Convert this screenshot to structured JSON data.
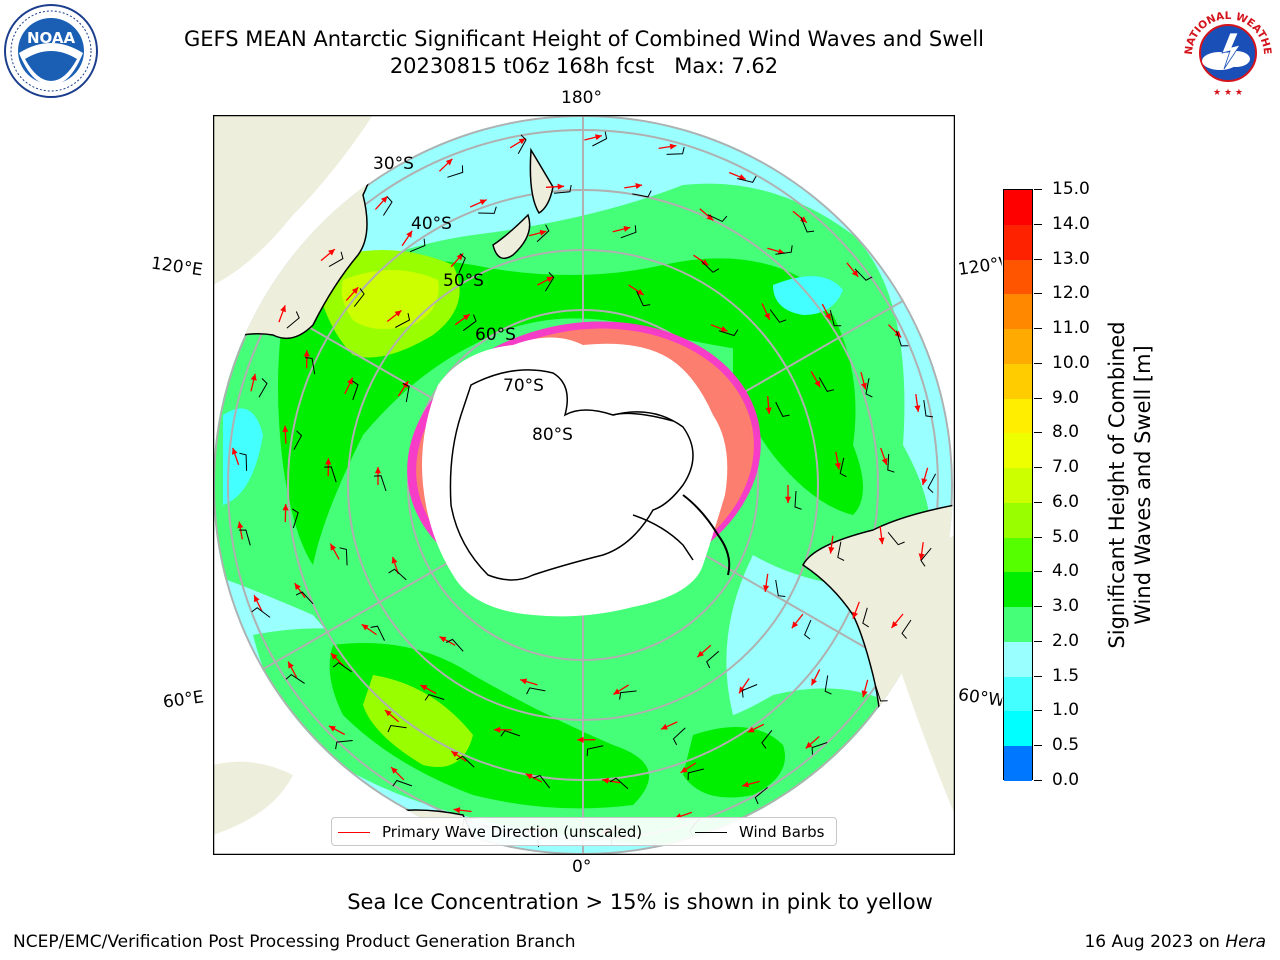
{
  "title": {
    "line1": "GEFS MEAN Antarctic Significant Height of Combined Wind Waves and Swell",
    "line2": "20230815 t06z 168h fcst   Max: 7.62"
  },
  "map": {
    "longitude_labels": {
      "top": "180°",
      "bottom": "0°",
      "upper_left": "120°E",
      "upper_right": "120°W",
      "lower_left": "60°E",
      "lower_right": "60°W"
    },
    "latitude_labels": [
      "30°S",
      "40°S",
      "50°S",
      "60°S",
      "70°S",
      "80°S"
    ],
    "colors": {
      "ocean": "#99ffff",
      "land": "#eeeedd",
      "sea_ice": "#ff33cc",
      "antarctica": "#ffffff",
      "wave_arrow": "#ff0000",
      "wind_barb": "#000000",
      "graticule": "#b0b0b0"
    }
  },
  "colorbar": {
    "title_line1": "Significant Height of Combined",
    "title_line2": "Wind Waves and Swell [m]",
    "labels": [
      "15.0",
      "14.0",
      "13.0",
      "12.0",
      "11.0",
      "10.0",
      "9.0",
      "8.0",
      "7.0",
      "6.0",
      "5.0",
      "4.0",
      "3.0",
      "2.0",
      "1.5",
      "1.0",
      "0.5",
      "0.0"
    ],
    "colors": [
      "#ff0000",
      "#ff2200",
      "#ff5500",
      "#ff8800",
      "#ffaa00",
      "#ffcc00",
      "#ffee00",
      "#eeff00",
      "#ccff00",
      "#99ff00",
      "#55ff00",
      "#00ee00",
      "#44ff77",
      "#99ffff",
      "#44ffff",
      "#00ffff",
      "#0077ff",
      "#0000ff"
    ]
  },
  "legend": {
    "wave_label": "Primary Wave Direction (unscaled)",
    "barb_label": "Wind Barbs"
  },
  "notes": {
    "sea_ice": "Sea Ice Concentration > 15% is shown in pink to yellow"
  },
  "footer": {
    "left": "NCEP/EMC/Verification Post Processing Product Generation Branch",
    "date": "16 Aug 2023 on ",
    "machine": "Hera"
  },
  "logos": {
    "noaa_text": "NOAA",
    "nws_text": "NATIONAL WEATHER SERVICE"
  }
}
